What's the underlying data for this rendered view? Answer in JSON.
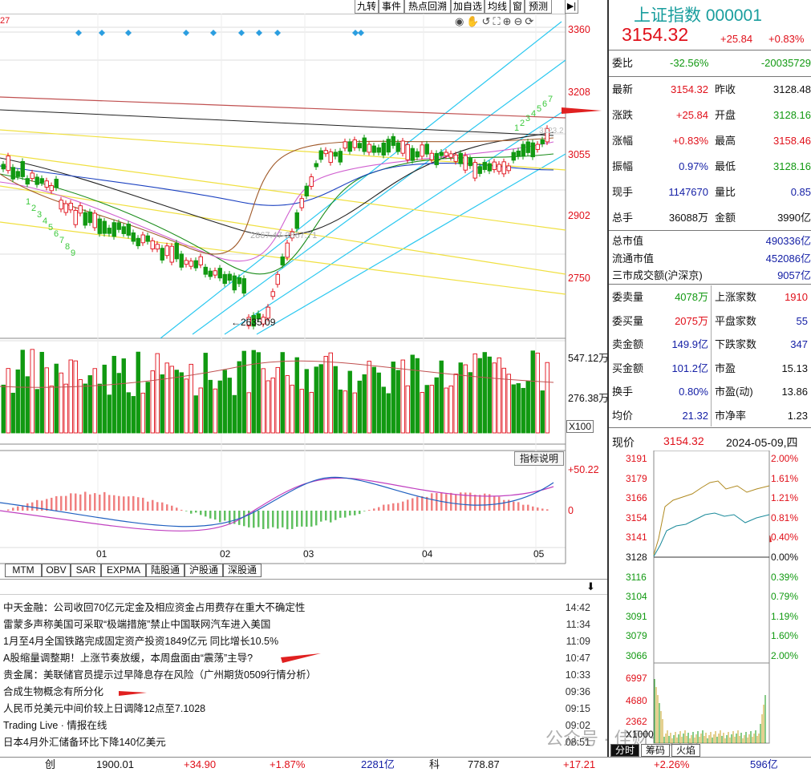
{
  "toolbar": {
    "buttons": [
      "九转",
      "事件",
      "热点回溯",
      "加自选",
      "均线",
      "窗",
      "预测"
    ]
  },
  "kline": {
    "corner_label": "27",
    "price_axis": [
      "3360",
      "3208",
      "3055",
      "2902",
      "2750"
    ],
    "annotations": {
      "low": "2635.09",
      "mid": "2867.47-2867.71",
      "recent": "3123.2"
    },
    "td_up": [
      "1",
      "2",
      "3",
      "4",
      "5",
      "6",
      "7"
    ],
    "td_down": [
      "1",
      "2",
      "3",
      "4",
      "5",
      "6",
      "7",
      "8",
      "9"
    ]
  },
  "volume": {
    "axis": [
      "547.12万",
      "276.38万"
    ],
    "unit": "X100"
  },
  "macd": {
    "axis": [
      "+50.22",
      "0"
    ],
    "help_button": "指标说明"
  },
  "dates": [
    "01",
    "02",
    "03",
    "04",
    "05"
  ],
  "indicator_tabs": [
    "MTM",
    "OBV",
    "SAR",
    "EXPMA",
    "陆股通",
    "沪股通",
    "深股通"
  ],
  "news": [
    {
      "title": "中天金融：公司收回70亿元定金及相应资金占用费存在重大不确定性",
      "time": "14:42"
    },
    {
      "title": "雷蒙多声称美国可采取“极端措施”禁止中国联网汽车进入美国",
      "time": "11:34"
    },
    {
      "title": "1月至4月全国铁路完成固定资产投资1849亿元 同比增长10.5%",
      "time": "11:09"
    },
    {
      "title": "A股缩量调整期！上涨节奏放缓，本周盘面由“震荡”主导?",
      "time": "10:47"
    },
    {
      "title": "贵金属：美联储官员提示过早降息存在风险（广州期货0509行情分析）",
      "time": "10:33"
    },
    {
      "title": "合成生物概念有所分化",
      "time": "09:36"
    },
    {
      "title": "人民币兑美元中间价较上日调降12点至7.1028",
      "time": "09:15"
    },
    {
      "title": " Trading Live · 情报在线",
      "time": "09:02"
    },
    {
      "title": "日本4月外汇储备环比下降140亿美元",
      "time": "08:51"
    }
  ],
  "bottom_bar": {
    "label1": "创",
    "val1": "1900.01",
    "chg1": "+34.90",
    "pct1": "+1.87%",
    "amt1": "2281亿",
    "label2": "科",
    "val2": "778.87",
    "chg2": "+17.21",
    "pct2": "+2.26%",
    "amt2": "596亿"
  },
  "quote": {
    "name": "上证指数",
    "code": "000001",
    "price": "3154.32",
    "change": "+25.84",
    "pct": "+0.83%",
    "weibi_label": "委比",
    "weibi_pct": "-32.56%",
    "weibi_val": "-20035729",
    "rows1": [
      {
        "l1": "最新",
        "v1": "3154.32",
        "c1": "red",
        "l2": "昨收",
        "v2": "3128.48",
        "c2": "black"
      },
      {
        "l1": "涨跌",
        "v1": "+25.84",
        "c1": "red",
        "l2": "开盘",
        "v2": "3128.16",
        "c2": "green"
      },
      {
        "l1": "涨幅",
        "v1": "+0.83%",
        "c1": "red",
        "l2": "最高",
        "v2": "3158.46",
        "c2": "red"
      },
      {
        "l1": "振幅",
        "v1": "0.97%",
        "c1": "blue",
        "l2": "最低",
        "v2": "3128.16",
        "c2": "green"
      },
      {
        "l1": "现手",
        "v1": "1147670",
        "c1": "blue",
        "l2": "量比",
        "v2": "0.85",
        "c2": "blue"
      },
      {
        "l1": "总手",
        "v1": "36088万",
        "c1": "black",
        "l2": "金额",
        "v2": "3990亿",
        "c2": "black"
      }
    ],
    "rows2": [
      {
        "l": "总市值",
        "v": "490336亿"
      },
      {
        "l": "流通市值",
        "v": "452086亿"
      },
      {
        "l": "三市成交额(沪深京)",
        "v": "9057亿"
      }
    ],
    "rows3": [
      {
        "l1": "委卖量",
        "v1": "4078万",
        "c1": "green",
        "l2": "上涨家数",
        "v2": "1910",
        "c2": "red"
      },
      {
        "l1": "委买量",
        "v1": "2075万",
        "c1": "red",
        "l2": "平盘家数",
        "v2": "55",
        "c2": "blue"
      },
      {
        "l1": "卖金额",
        "v1": "149.9亿",
        "c1": "blue",
        "l2": "下跌家数",
        "v2": "347",
        "c2": "blue"
      },
      {
        "l1": "买金额",
        "v1": "101.2亿",
        "c1": "blue",
        "l2": "市盈",
        "v2": "15.13",
        "c2": "black"
      },
      {
        "l1": "换手",
        "v1": "0.80%",
        "c1": "blue",
        "l2": "市盈(动)",
        "v2": "13.86",
        "c2": "black"
      },
      {
        "l1": "均价",
        "v1": "21.32",
        "c1": "blue",
        "l2": "市净率",
        "v2": "1.23",
        "c2": "black"
      }
    ]
  },
  "intraday": {
    "label": "现价",
    "price": "3154.32",
    "date": "2024-05-09,四",
    "left_axis": [
      "3191",
      "3179",
      "3166",
      "3154",
      "3141",
      "3128",
      "3116",
      "3104",
      "3091",
      "3079",
      "3066"
    ],
    "right_axis": [
      "2.00%",
      "1.61%",
      "1.21%",
      "0.81%",
      "0.40%",
      "0.00%",
      "0.39%",
      "0.79%",
      "1.19%",
      "1.60%",
      "2.00%"
    ],
    "vol_axis": [
      "6997",
      "4680",
      "2362",
      "X1000"
    ],
    "tabs": [
      "分时",
      "筹码",
      "火焰"
    ]
  },
  "watermark": "公众号 · 佳财一分钟"
}
